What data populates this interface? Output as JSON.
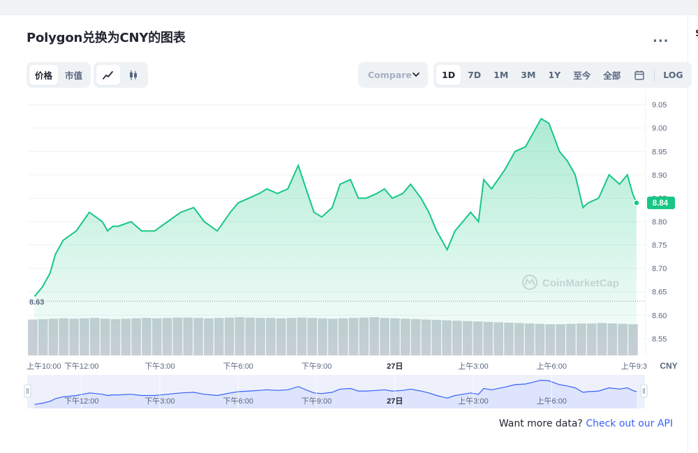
{
  "title": "Polygon兑换为CNY的图表",
  "more_label": "...",
  "edge_char": "$",
  "metric_tabs": [
    {
      "label": "价格",
      "active": true
    },
    {
      "label": "市值",
      "active": false
    }
  ],
  "chart_type_icons": [
    {
      "icon": "line-chart-icon",
      "active": true
    },
    {
      "icon": "candlestick-icon",
      "active": false
    }
  ],
  "compare": {
    "label": "Compare"
  },
  "range_tabs": [
    {
      "label": "1D",
      "active": true
    },
    {
      "label": "7D",
      "active": false
    },
    {
      "label": "1M",
      "active": false
    },
    {
      "label": "3M",
      "active": false
    },
    {
      "label": "1Y",
      "active": false
    },
    {
      "label": "至今",
      "active": false
    },
    {
      "label": "全部",
      "active": false
    }
  ],
  "calendar_icon": "calendar-icon",
  "log_label": "LOG",
  "watermark": "CoinMarketCap",
  "footer": {
    "text": "Want more data?",
    "link": "Check out our API"
  },
  "colors": {
    "line": "#16c784",
    "volume": "#c9ced6",
    "nav_fill": "#dde4fb",
    "nav_line": "#3861fb",
    "link": "#3861fb"
  },
  "chart_data": {
    "type": "line",
    "title": "Polygon兑换为CNY的图表",
    "currency_label": "CNY",
    "x_ticks": [
      "上午10:00",
      "下午12:00",
      "下午3:00",
      "下午6:00",
      "下午9:00",
      "27日",
      "上午3:00",
      "上午6:00",
      "上午9:3"
    ],
    "x_tick_hours": [
      10,
      12,
      15,
      18,
      21,
      24,
      27,
      30,
      33
    ],
    "navigator_ticks": [
      "下午12:00",
      "下午3:00",
      "下午6:00",
      "下午9:00",
      "27日",
      "上午3:00",
      "上午6:00"
    ],
    "navigator_tick_hours": [
      12,
      15,
      18,
      21,
      24,
      27,
      30
    ],
    "y_ticks": [
      8.55,
      8.6,
      8.65,
      8.7,
      8.75,
      8.8,
      8.85,
      8.9,
      8.95,
      9.0,
      9.05
    ],
    "y_tick_labels": [
      "8.55",
      "8.60",
      "8.65",
      "8.70",
      "8.75",
      "8.80",
      "8.85",
      "8.90",
      "8.95",
      "9.00",
      "9.05"
    ],
    "ylim": [
      8.514,
      9.08
    ],
    "xlim": [
      9.95,
      33.6
    ],
    "current_price": 8.84,
    "current_price_label": "8.84",
    "open_price": 8.63,
    "open_price_label": "8.63",
    "grid": true,
    "series": [
      {
        "x": [
          10.2,
          10.5,
          10.8,
          11.0,
          11.3,
          11.8,
          12.3,
          12.8,
          13.0,
          13.2,
          13.4,
          13.9,
          14.3,
          14.8,
          15.3,
          15.8,
          16.3,
          16.7,
          17.2,
          17.7,
          18.0,
          18.4,
          18.8,
          19.1,
          19.5,
          19.9,
          20.3,
          20.6,
          20.9,
          21.2,
          21.6,
          21.9,
          22.3,
          22.6,
          22.9,
          23.3,
          23.6,
          23.9,
          24.3,
          24.6,
          25.0,
          25.3,
          25.6,
          26.0,
          26.3,
          26.6,
          26.9,
          27.2,
          27.4,
          27.7,
          28.2,
          28.6,
          29.0,
          29.4,
          29.6,
          29.9,
          30.3,
          30.6,
          30.9,
          31.2,
          31.4,
          31.8,
          32.2,
          32.6,
          32.9,
          33.1,
          33.25
        ],
        "values": [
          8.64,
          8.66,
          8.69,
          8.73,
          8.76,
          8.78,
          8.82,
          8.8,
          8.78,
          8.79,
          8.79,
          8.8,
          8.78,
          8.78,
          8.8,
          8.82,
          8.83,
          8.8,
          8.78,
          8.82,
          8.84,
          8.85,
          8.86,
          8.87,
          8.86,
          8.87,
          8.92,
          8.87,
          8.82,
          8.81,
          8.83,
          8.88,
          8.89,
          8.85,
          8.85,
          8.86,
          8.87,
          8.85,
          8.86,
          8.88,
          8.85,
          8.82,
          8.78,
          8.74,
          8.78,
          8.8,
          8.82,
          8.8,
          8.89,
          8.87,
          8.91,
          8.95,
          8.96,
          9.0,
          9.02,
          9.01,
          8.95,
          8.93,
          8.9,
          8.83,
          8.84,
          8.85,
          8.9,
          8.88,
          8.9,
          8.86,
          8.84
        ]
      }
    ],
    "volume_relative": [
      0.92,
      0.93,
      0.94,
      0.95,
      0.94,
      0.95,
      0.96,
      0.94,
      0.93,
      0.94,
      0.95,
      0.96,
      0.95,
      0.96,
      0.97,
      0.97,
      0.96,
      0.95,
      0.96,
      0.97,
      0.98,
      0.97,
      0.96,
      0.96,
      0.95,
      0.96,
      0.97,
      0.96,
      0.95,
      0.94,
      0.95,
      0.96,
      0.97,
      0.98,
      0.96,
      0.95,
      0.94,
      0.93,
      0.92,
      0.91,
      0.9,
      0.89,
      0.88,
      0.87,
      0.86,
      0.85,
      0.84,
      0.83,
      0.82,
      0.81,
      0.8,
      0.8,
      0.81,
      0.82,
      0.82,
      0.83,
      0.82,
      0.81,
      0.8
    ]
  }
}
